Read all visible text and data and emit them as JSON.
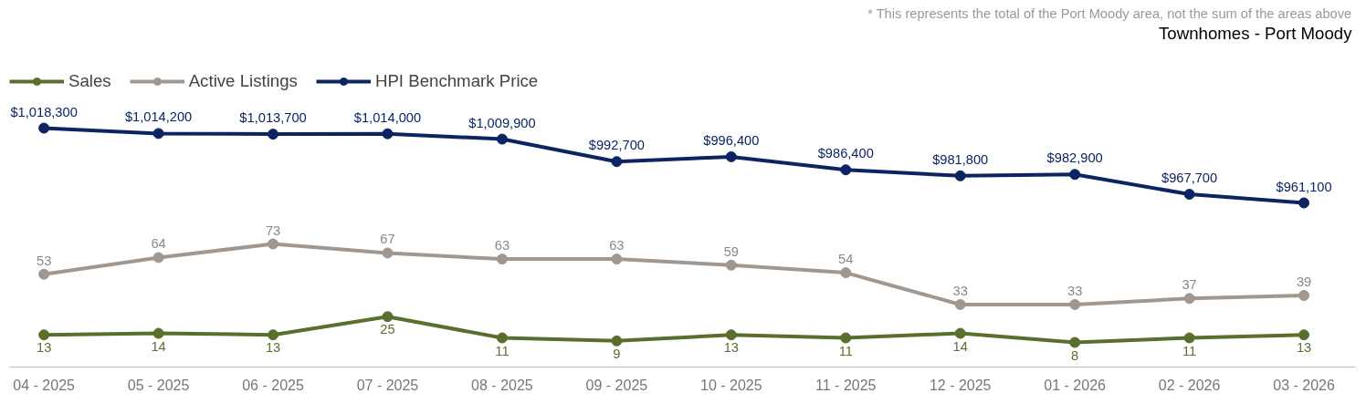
{
  "chart_data": [
    {
      "type": "line",
      "title": "Townhomes - Port Moody",
      "annotations": [
        "* This represents the total of the Port Moody area, not the sum of the areas above"
      ],
      "categories": [
        null,
        null,
        null,
        null,
        null,
        null,
        null,
        null,
        null,
        null,
        null,
        null
      ],
      "series": [
        {
          "name": "HPI Benchmark Price",
          "color": "#0c2461",
          "values": [
            1018300,
            1014200,
            1013700,
            1014000,
            1009900,
            992700,
            996400,
            986400,
            981800,
            982900,
            967700,
            961100
          ],
          "value_labels": [
            "$1,018,300",
            "$1,014,200",
            "$1,013,700",
            "$1,014,000",
            "$1,009,900",
            "$992,700",
            "$996,400",
            "$986,400",
            "$981,800",
            "$982,900",
            "$967,700",
            "$961,100"
          ]
        }
      ],
      "tick_labels": false,
      "legend": "top left",
      "marker": "circle",
      "line_style": "solid"
    },
    {
      "type": "line",
      "categories": [
        "04 - 2025",
        "05 - 2025",
        "06 - 2025",
        "07 - 2025",
        "08 - 2025",
        "09 - 2025",
        "10 - 2025",
        "11 - 2025",
        "12 - 2025",
        "01 - 2026",
        "02 - 2026",
        "03 - 2026"
      ],
      "series": [
        {
          "name": "Sales",
          "color": "#5a6e2e",
          "values": [
            13,
            14,
            13,
            25,
            11,
            9,
            13,
            11,
            14,
            8,
            11,
            13
          ],
          "value_labels": [
            "13",
            "14",
            "13",
            "25",
            "11",
            "9",
            "13",
            "11",
            "14",
            "8",
            "11",
            "13"
          ]
        },
        {
          "name": "Active Listings",
          "color": "#a09890",
          "values": [
            53,
            64,
            73,
            67,
            63,
            63,
            59,
            54,
            33,
            33,
            37,
            39
          ],
          "value_labels": [
            "53",
            "64",
            "73",
            "67",
            "63",
            "63",
            "59",
            "54",
            "33",
            "33",
            "37",
            "39"
          ]
        }
      ],
      "tick_labels": "x",
      "legend": "top left",
      "marker": "circle",
      "line_style": "solid"
    }
  ]
}
